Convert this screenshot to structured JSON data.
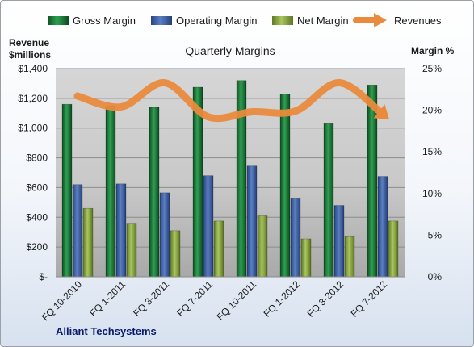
{
  "chart_data": {
    "type": "bar",
    "title": "Quarterly Margins",
    "footer": "Alliant Techsystems",
    "categories": [
      "FQ 10-2010",
      "FQ 1-2011",
      "FQ 3-2011",
      "FQ 7-2011",
      "FQ 10-2011",
      "FQ 1-2012",
      "FQ 3-2012",
      "FQ 7-2012"
    ],
    "left_axis": {
      "label_line1": "Revenue",
      "label_line2": "$millions",
      "ylim": [
        0,
        1400
      ],
      "ticks": [
        0,
        200,
        400,
        600,
        800,
        1000,
        1200,
        1400
      ],
      "tick_labels": [
        "$-",
        "$200",
        "$400",
        "$600",
        "$800",
        "$1,000",
        "$1,200",
        "$1,400"
      ]
    },
    "right_axis": {
      "label": "Margin %",
      "ylim": [
        0,
        25
      ],
      "ticks": [
        0,
        5,
        10,
        15,
        20,
        25
      ],
      "tick_labels": [
        "0%",
        "5%",
        "10%",
        "15%",
        "20%",
        "25%"
      ]
    },
    "series": [
      {
        "name": "Gross Margin",
        "type": "bar",
        "axis": "left",
        "color": "#1f7a3a",
        "values": [
          1160,
          1150,
          1140,
          1275,
          1320,
          1230,
          1030,
          1290
        ]
      },
      {
        "name": "Operating Margin",
        "type": "bar",
        "axis": "left",
        "color": "#3d5fa3",
        "values": [
          620,
          625,
          565,
          680,
          745,
          530,
          480,
          675
        ]
      },
      {
        "name": "Net Margin",
        "type": "bar",
        "axis": "left",
        "color": "#8fae45",
        "values": [
          460,
          360,
          310,
          375,
          410,
          255,
          270,
          375
        ]
      },
      {
        "name": "Revenues",
        "type": "line",
        "axis": "right",
        "color": "#e98a3d",
        "values": [
          21.7,
          20.4,
          23.3,
          19.2,
          19.8,
          19.9,
          23.3,
          19.5
        ]
      }
    ],
    "grid": true,
    "legend_position": "top"
  }
}
